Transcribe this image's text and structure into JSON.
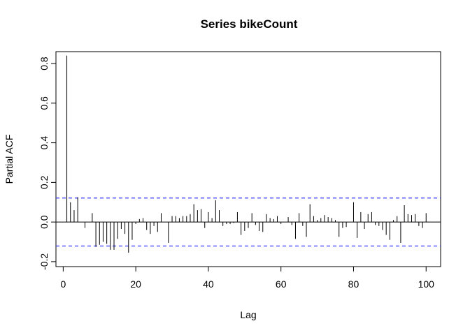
{
  "chart_data": {
    "type": "bar",
    "title": "Series  bikeCount",
    "xlabel": "Lag",
    "ylabel": "Partial ACF",
    "xlim": [
      -2,
      104
    ],
    "ylim": [
      -0.225,
      0.86
    ],
    "x_ticks": [
      0,
      20,
      40,
      60,
      80,
      100
    ],
    "x_tick_labels": [
      "0",
      "20",
      "40",
      "60",
      "80",
      "100"
    ],
    "y_ticks": [
      -0.2,
      0.0,
      0.2,
      0.4,
      0.6,
      0.8
    ],
    "y_tick_labels": [
      "-0.2",
      "0.0",
      "0.2",
      "0.4",
      "0.6",
      "0.8"
    ],
    "confidence_bound": 0.121,
    "confidence_color": "#3333ff",
    "lags": [
      1,
      2,
      3,
      4,
      5,
      6,
      7,
      8,
      9,
      10,
      11,
      12,
      13,
      14,
      15,
      16,
      17,
      18,
      19,
      20,
      21,
      22,
      23,
      24,
      25,
      26,
      27,
      28,
      29,
      30,
      31,
      32,
      33,
      34,
      35,
      36,
      37,
      38,
      39,
      40,
      41,
      42,
      43,
      44,
      45,
      46,
      47,
      48,
      49,
      50,
      51,
      52,
      53,
      54,
      55,
      56,
      57,
      58,
      59,
      60,
      61,
      62,
      63,
      64,
      65,
      66,
      67,
      68,
      69,
      70,
      71,
      72,
      73,
      74,
      75,
      76,
      77,
      78,
      79,
      80,
      81,
      82,
      83,
      84,
      85,
      86,
      87,
      88,
      89,
      90,
      91,
      92,
      93,
      94,
      95,
      96,
      97,
      98,
      99,
      100
    ],
    "values": [
      0.84,
      0.1,
      0.06,
      0.125,
      0.0,
      -0.03,
      0.0,
      0.045,
      -0.125,
      -0.115,
      -0.1,
      -0.11,
      -0.14,
      -0.14,
      -0.085,
      -0.035,
      -0.06,
      -0.155,
      -0.09,
      -0.01,
      0.015,
      0.02,
      -0.04,
      -0.06,
      -0.02,
      -0.05,
      0.045,
      0.0,
      -0.105,
      0.03,
      0.03,
      0.02,
      0.03,
      0.03,
      0.04,
      0.09,
      0.06,
      0.065,
      -0.03,
      0.05,
      0.02,
      0.11,
      0.06,
      -0.02,
      -0.01,
      -0.01,
      -0.005,
      0.05,
      -0.065,
      -0.045,
      -0.03,
      0.045,
      -0.015,
      -0.045,
      -0.05,
      0.04,
      0.02,
      0.015,
      0.03,
      -0.01,
      0.0,
      0.025,
      -0.015,
      -0.085,
      0.045,
      -0.02,
      -0.075,
      0.09,
      0.03,
      0.01,
      0.02,
      0.035,
      0.025,
      0.02,
      0.01,
      -0.075,
      -0.03,
      -0.025,
      0.0,
      0.1,
      -0.08,
      0.05,
      -0.035,
      0.04,
      0.05,
      -0.015,
      -0.02,
      -0.04,
      -0.065,
      -0.09,
      0.01,
      0.03,
      -0.105,
      0.085,
      0.04,
      0.035,
      0.04,
      -0.02,
      -0.03,
      0.045
    ],
    "grid": false,
    "legend": "none"
  }
}
